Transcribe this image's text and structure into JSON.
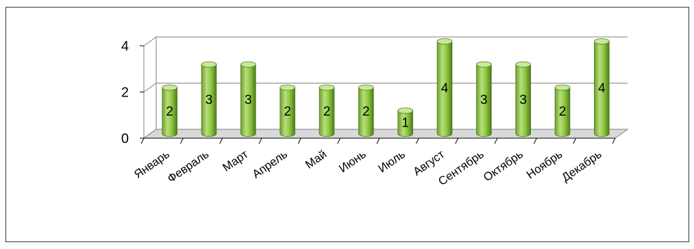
{
  "chart_data": {
    "type": "bar",
    "style": "3d-cylinder",
    "categories": [
      "Январь",
      "Февраль",
      "Март",
      "Апрель",
      "Май",
      "Июнь",
      "Июль",
      "Август",
      "Сентябрь",
      "Октябрь",
      "Ноябрь",
      "Декабрь"
    ],
    "series": [
      {
        "values": [
          2,
          3,
          3,
          2,
          2,
          2,
          1,
          4,
          3,
          3,
          2,
          4
        ]
      }
    ],
    "y_ticks": [
      "0",
      "2",
      "4"
    ],
    "ylim": [
      0,
      4
    ],
    "grid": true,
    "legend": "none",
    "data_labels": true,
    "colors": {
      "bar": "#8cc63f",
      "bar_dark": "#4e7a1c",
      "bar_light": "#c9e89a",
      "grid": "#7f7f7f",
      "floor": "#d9d9d9"
    }
  }
}
